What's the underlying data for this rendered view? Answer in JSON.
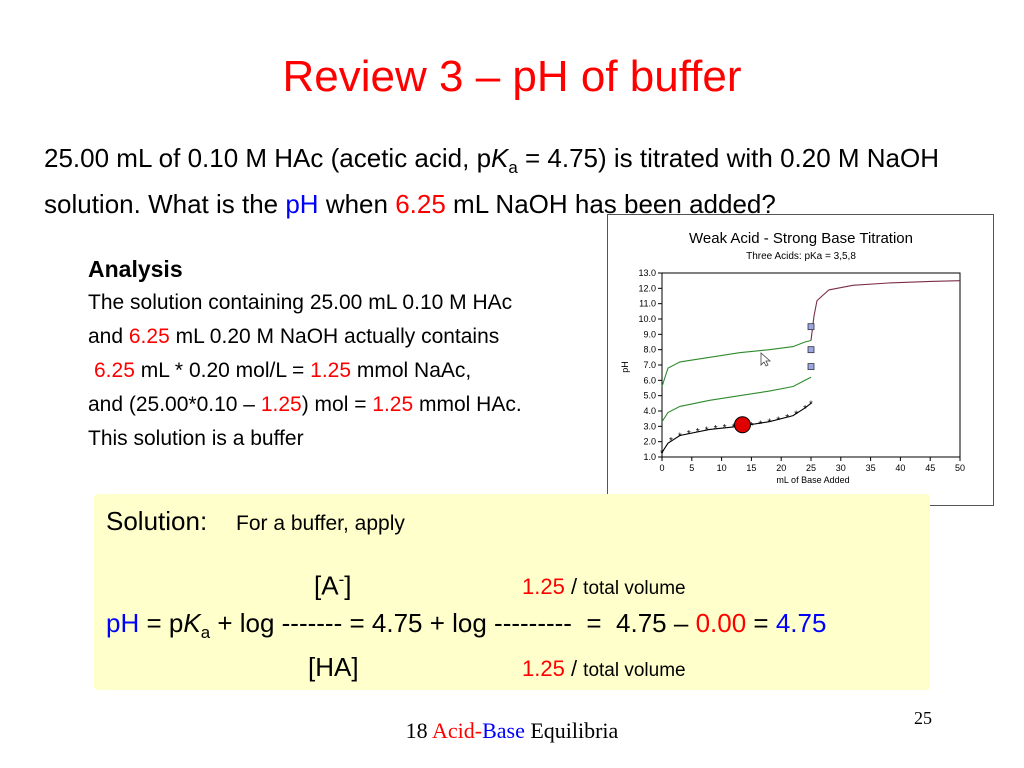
{
  "title": "Review 3 – pH of buffer",
  "problem": {
    "t1": "25.00 mL of 0.10 M HAc (acetic acid, p",
    "k": "K",
    "a": "a",
    "t2": " = 4.75) is titrated with 0.20 M NaOH solution. What is the ",
    "ph": "pH",
    "t3": " when ",
    "vol": "6.25",
    "t4": " mL NaOH has been added?"
  },
  "analysis": {
    "heading": "Analysis",
    "line1": "The solution containing 25.00 mL 0.10 M HAc",
    "l2a": "and ",
    "l2b": "6.25",
    "l2c": " mL 0.20 M NaOH actually contains",
    "l3a": "6.25",
    "l3b": " mL * 0.20 mol/L = ",
    "l3c": "1.25",
    "l3d": " mmol NaAc,",
    "l4a": "and (25.00*0.10 – ",
    "l4b": "1.25",
    "l4c": ") mol = ",
    "l4d": "1.25",
    "l4e": " mmol HAc.",
    "line5": "This solution is a buffer"
  },
  "chart_data": {
    "type": "line",
    "title": "Weak Acid -  Strong Base Titration",
    "subtitle": "Three Acids:  pKa = 3,5,8",
    "xlabel": "mL of Base Added",
    "ylabel": "pH",
    "xlim": [
      0,
      50
    ],
    "ylim": [
      1.0,
      13.0
    ],
    "xticks": [
      "0",
      "5",
      "10",
      "15",
      "20",
      "25",
      "30",
      "35",
      "40",
      "45",
      "50"
    ],
    "yticks": [
      "1.0",
      "2.0",
      "3.0",
      "4.0",
      "5.0",
      "6.0",
      "7.0",
      "8.0",
      "9.0",
      "10.0",
      "11.0",
      "12.0",
      "13.0"
    ],
    "series": [
      {
        "color": "#2e8b2e",
        "points": [
          [
            0,
            5.6
          ],
          [
            1,
            6.8
          ],
          [
            3,
            7.2
          ],
          [
            8,
            7.5
          ],
          [
            13,
            7.8
          ],
          [
            18,
            8.0
          ],
          [
            22,
            8.2
          ],
          [
            24,
            8.5
          ],
          [
            25,
            8.6
          ]
        ]
      },
      {
        "color": "#2e8b2e",
        "points": [
          [
            0,
            3.3
          ],
          [
            1,
            3.9
          ],
          [
            3,
            4.3
          ],
          [
            8,
            4.7
          ],
          [
            13,
            5.0
          ],
          [
            18,
            5.3
          ],
          [
            22,
            5.6
          ],
          [
            24,
            6.0
          ],
          [
            25,
            6.2
          ]
        ]
      },
      {
        "color": "#000000",
        "points": [
          [
            0,
            1.3
          ],
          [
            1,
            1.9
          ],
          [
            3,
            2.4
          ],
          [
            8,
            2.8
          ],
          [
            13,
            3.0
          ],
          [
            18,
            3.3
          ],
          [
            22,
            3.7
          ],
          [
            24,
            4.2
          ],
          [
            25,
            4.5
          ]
        ]
      },
      {
        "color": "#7b2d4a",
        "points": [
          [
            25,
            8.6
          ],
          [
            25.5,
            10.2
          ],
          [
            26,
            11.2
          ],
          [
            28,
            11.9
          ],
          [
            32,
            12.2
          ],
          [
            38,
            12.35
          ],
          [
            45,
            12.45
          ],
          [
            50,
            12.5
          ]
        ]
      }
    ],
    "squares": [
      [
        25,
        9.5
      ],
      [
        25,
        8.0
      ],
      [
        25,
        6.9
      ]
    ],
    "stars": [
      [
        0,
        1.3
      ],
      [
        1.5,
        2.1
      ],
      [
        3,
        2.4
      ],
      [
        4.5,
        2.55
      ],
      [
        6,
        2.7
      ],
      [
        7.5,
        2.8
      ],
      [
        9,
        2.88
      ],
      [
        10.5,
        2.95
      ],
      [
        12,
        3.0
      ],
      [
        13.5,
        3.05
      ],
      [
        15,
        3.1
      ],
      [
        16.5,
        3.2
      ],
      [
        18,
        3.3
      ],
      [
        19.5,
        3.45
      ],
      [
        21,
        3.6
      ],
      [
        22.5,
        3.85
      ],
      [
        24,
        4.2
      ],
      [
        25,
        4.5
      ]
    ],
    "marker": [
      13.5,
      3.1
    ]
  },
  "solution": {
    "label": "Solution:",
    "sub": "For a buffer, apply",
    "a_minus": "[A",
    "a_sup": "-",
    "a_close": "]",
    "top_val": "1.25",
    "slash": " / ",
    "tv": "total volume",
    "ph": "pH",
    "eq1": " = p",
    "k": "K",
    "ka_sub": "a",
    "eq2": " + log ------- = 4.75 + log ---------  =  4.75 – ",
    "zero": "0.00",
    "eq3": " = ",
    "result": "4.75",
    "ha": "[HA]",
    "bot_val": "1.25"
  },
  "footer": {
    "num": "18 ",
    "acid": "Acid",
    "dash": "-",
    "base": "Base",
    "eq": " Equilibria"
  },
  "page_number": "25",
  "colors": {
    "title": "#ff0000",
    "highlight_red": "#ff0000",
    "highlight_blue": "#0000ff",
    "solution_bg": "#ffffcc",
    "marker": "#e00000"
  }
}
